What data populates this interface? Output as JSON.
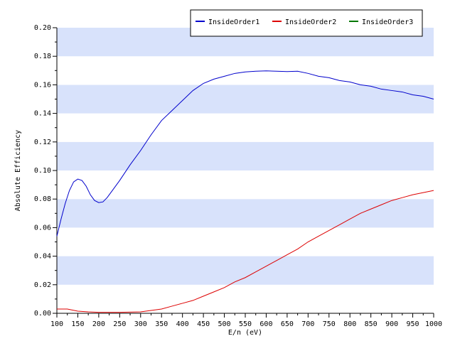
{
  "chart_data": {
    "type": "line",
    "title": "",
    "xlabel": "E/n (eV)",
    "ylabel": "Absolute Efficiency",
    "xlim": [
      100,
      1000
    ],
    "ylim": [
      0,
      0.2
    ],
    "x_ticks": [
      "100",
      "150",
      "200",
      "250",
      "300",
      "350",
      "400",
      "450",
      "500",
      "550",
      "600",
      "650",
      "700",
      "750",
      "800",
      "850",
      "900",
      "950",
      "1000"
    ],
    "y_ticks": [
      "0.00",
      "0.02",
      "0.04",
      "0.06",
      "0.08",
      "0.10",
      "0.12",
      "0.14",
      "0.16",
      "0.18",
      "0.20"
    ],
    "grid": "alternating horizontal bands",
    "band_color": "#d8e2fb",
    "legend_position": "top",
    "series": [
      {
        "name": "InsideOrder1",
        "color": "#0000cc",
        "points": [
          [
            100,
            0.054
          ],
          [
            110,
            0.066
          ],
          [
            120,
            0.077
          ],
          [
            130,
            0.086
          ],
          [
            140,
            0.092
          ],
          [
            150,
            0.094
          ],
          [
            160,
            0.093
          ],
          [
            170,
            0.089
          ],
          [
            180,
            0.083
          ],
          [
            190,
            0.079
          ],
          [
            200,
            0.0775
          ],
          [
            210,
            0.078
          ],
          [
            220,
            0.081
          ],
          [
            230,
            0.085
          ],
          [
            250,
            0.093
          ],
          [
            275,
            0.104
          ],
          [
            300,
            0.114
          ],
          [
            325,
            0.125
          ],
          [
            350,
            0.135
          ],
          [
            375,
            0.142
          ],
          [
            400,
            0.149
          ],
          [
            425,
            0.156
          ],
          [
            450,
            0.161
          ],
          [
            475,
            0.164
          ],
          [
            500,
            0.166
          ],
          [
            525,
            0.168
          ],
          [
            550,
            0.169
          ],
          [
            575,
            0.1695
          ],
          [
            600,
            0.1698
          ],
          [
            625,
            0.1695
          ],
          [
            650,
            0.1693
          ],
          [
            675,
            0.1695
          ],
          [
            700,
            0.168
          ],
          [
            725,
            0.166
          ],
          [
            750,
            0.165
          ],
          [
            775,
            0.163
          ],
          [
            800,
            0.162
          ],
          [
            825,
            0.16
          ],
          [
            850,
            0.159
          ],
          [
            875,
            0.157
          ],
          [
            900,
            0.156
          ],
          [
            925,
            0.155
          ],
          [
            950,
            0.153
          ],
          [
            975,
            0.152
          ],
          [
            1000,
            0.15
          ]
        ]
      },
      {
        "name": "InsideOrder2",
        "color": "#dd0000",
        "points": [
          [
            100,
            0.003
          ],
          [
            125,
            0.003
          ],
          [
            150,
            0.0015
          ],
          [
            175,
            0.001
          ],
          [
            200,
            0.0007
          ],
          [
            250,
            0.0007
          ],
          [
            300,
            0.001
          ],
          [
            325,
            0.002
          ],
          [
            350,
            0.003
          ],
          [
            375,
            0.005
          ],
          [
            400,
            0.007
          ],
          [
            425,
            0.009
          ],
          [
            450,
            0.012
          ],
          [
            475,
            0.015
          ],
          [
            500,
            0.018
          ],
          [
            525,
            0.022
          ],
          [
            550,
            0.025
          ],
          [
            575,
            0.029
          ],
          [
            600,
            0.033
          ],
          [
            625,
            0.037
          ],
          [
            650,
            0.041
          ],
          [
            675,
            0.045
          ],
          [
            700,
            0.05
          ],
          [
            725,
            0.054
          ],
          [
            750,
            0.058
          ],
          [
            775,
            0.062
          ],
          [
            800,
            0.066
          ],
          [
            825,
            0.07
          ],
          [
            850,
            0.073
          ],
          [
            875,
            0.076
          ],
          [
            900,
            0.079
          ],
          [
            925,
            0.081
          ],
          [
            950,
            0.083
          ],
          [
            975,
            0.0845
          ],
          [
            1000,
            0.086
          ]
        ]
      },
      {
        "name": "InsideOrder3",
        "color": "#007700",
        "points": []
      }
    ]
  }
}
